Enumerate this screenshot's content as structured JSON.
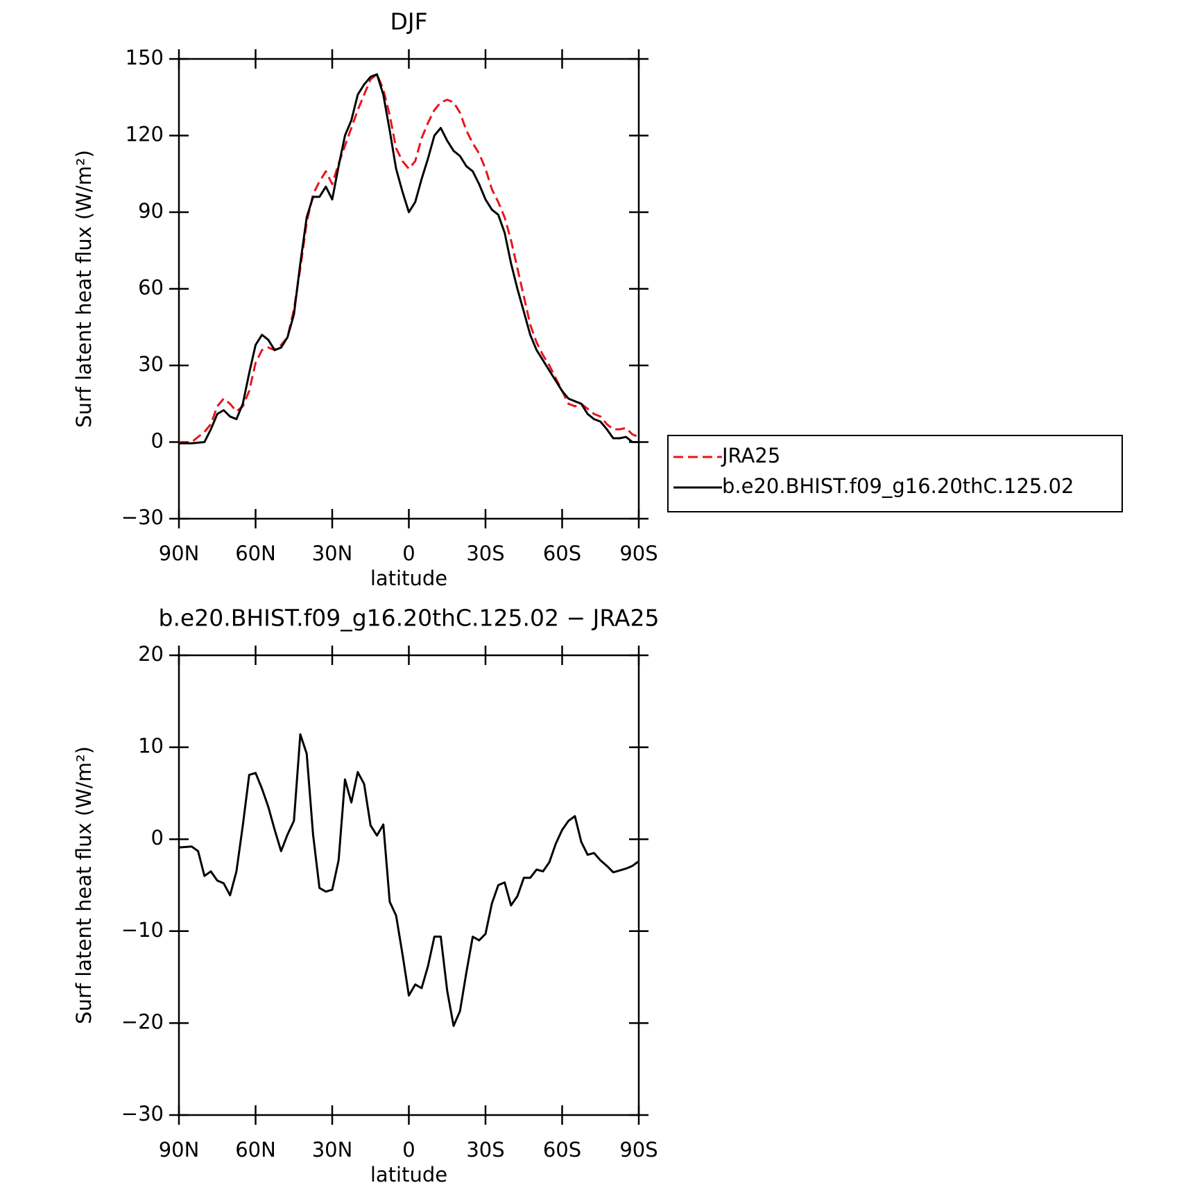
{
  "chart_data": [
    {
      "type": "line",
      "title": "DJF",
      "xlabel": "latitude",
      "ylabel": "Surf latent heat flux (W/m²)",
      "x": [
        90,
        85,
        80,
        77.5,
        75,
        72.5,
        70,
        67.5,
        65,
        62.5,
        60,
        57.5,
        55,
        52.5,
        50,
        47.5,
        45,
        42.5,
        40,
        37.5,
        35,
        32.5,
        30,
        27.5,
        25,
        22.5,
        20,
        17.5,
        15,
        12.5,
        10,
        7.5,
        5,
        2.5,
        0,
        -2.5,
        -5,
        -7.5,
        -10,
        -12.5,
        -15,
        -17.5,
        -20,
        -22.5,
        -25,
        -27.5,
        -30,
        -32.5,
        -35,
        -37.5,
        -40,
        -42.5,
        -45,
        -47.5,
        -50,
        -52.5,
        -55,
        -57.5,
        -60,
        -62.5,
        -65,
        -67.5,
        -70,
        -72.5,
        -75,
        -77.5,
        -80,
        -82.5,
        -85,
        -87.5,
        -90
      ],
      "series": [
        {
          "name": "JRA25",
          "color": "#e8141c",
          "dash": true,
          "values": [
            0,
            0,
            4,
            7,
            14,
            17,
            15,
            12,
            14,
            20,
            31,
            36,
            37,
            36,
            38,
            41,
            52,
            68,
            86,
            97,
            102,
            106,
            101,
            109,
            116,
            123,
            130,
            136,
            142,
            144,
            138,
            128,
            115,
            110,
            107,
            110,
            119,
            125,
            130,
            133,
            134,
            133,
            129,
            122,
            117,
            113,
            107,
            99,
            94,
            88,
            79,
            68,
            57,
            46,
            39,
            34,
            30,
            25,
            20,
            15,
            14,
            15,
            13,
            11,
            10,
            7,
            5,
            5,
            5.5,
            3,
            2
          ]
        },
        {
          "name": "b.e20.BHIST.f09_g16.20thC.125.02",
          "color": "#000000",
          "dash": false,
          "values": [
            -0.5,
            -0.5,
            0,
            5,
            11,
            12.5,
            10,
            9,
            15,
            27,
            38,
            42,
            40,
            36,
            37,
            41,
            50,
            70,
            88,
            96,
            96,
            100,
            95,
            108,
            120,
            126,
            136,
            140,
            143,
            144,
            136,
            122,
            107,
            98,
            90,
            94,
            103,
            111,
            120,
            123,
            118,
            114,
            112,
            108,
            106,
            101,
            95,
            91,
            89,
            82,
            70,
            60,
            51,
            42,
            36,
            32,
            28,
            24,
            20,
            17,
            16,
            15,
            11,
            9,
            8,
            5,
            1.5,
            1.5,
            2,
            0,
            0
          ]
        }
      ],
      "xlim": [
        90,
        -90
      ],
      "xticks": [
        {
          "value": 90,
          "label": "90N"
        },
        {
          "value": 60,
          "label": "60N"
        },
        {
          "value": 30,
          "label": "30N"
        },
        0,
        {
          "value": -30,
          "label": "30S"
        },
        {
          "value": -60,
          "label": "60S"
        },
        {
          "value": -90,
          "label": "90S"
        }
      ],
      "ylim": [
        -30,
        150
      ],
      "yticks": [
        {
          "value": -30,
          "label": "−30"
        },
        0,
        30,
        60,
        90,
        120,
        150
      ],
      "legend": "right"
    },
    {
      "type": "line",
      "title": "b.e20.BHIST.f09_g16.20thC.125.02 − JRA25",
      "xlabel": "latitude",
      "ylabel": "Surf latent heat flux (W/m²)",
      "x": [
        90,
        85,
        82.5,
        80,
        77.5,
        75,
        72.5,
        70,
        67.5,
        65,
        62.5,
        60,
        57.5,
        55,
        52.5,
        50,
        47.5,
        45,
        42.5,
        40,
        37.5,
        35,
        32.5,
        30,
        27.5,
        25,
        22.5,
        20,
        17.5,
        15,
        12.5,
        10,
        7.5,
        5,
        2.5,
        0,
        -2.5,
        -5,
        -7.5,
        -10,
        -12.5,
        -15,
        -17.5,
        -20,
        -22.5,
        -25,
        -27.5,
        -30,
        -32.5,
        -35,
        -37.5,
        -40,
        -42.5,
        -45,
        -47.5,
        -50,
        -52.5,
        -55,
        -57.5,
        -60,
        -62.5,
        -65,
        -67.5,
        -70,
        -72.5,
        -75,
        -77.5,
        -80,
        -82.5,
        -85,
        -87.5,
        -90
      ],
      "values": [
        -0.9,
        -0.8,
        -1.3,
        -4,
        -3.5,
        -4.5,
        -4.8,
        -6.1,
        -3.5,
        1.5,
        7,
        7.2,
        5.5,
        3.5,
        1,
        -1.3,
        0.5,
        2,
        11.4,
        9.3,
        0.5,
        -5.3,
        -5.7,
        -5.5,
        -2.3,
        6.5,
        4,
        7.3,
        6,
        1.5,
        0.4,
        1.6,
        -6.8,
        -8.3,
        -12.5,
        -17,
        -15.8,
        -16.2,
        -13.8,
        -10.6,
        -10.6,
        -16.5,
        -20.3,
        -18.7,
        -14.5,
        -10.6,
        -11,
        -10.3,
        -7,
        -5,
        -4.7,
        -7.2,
        -6.2,
        -4.2,
        -4.2,
        -3.3,
        -3.5,
        -2.5,
        -0.5,
        1,
        2,
        2.5,
        -0.3,
        -1.7,
        -1.5,
        -2.3,
        -2.9,
        -3.6,
        -3.4,
        -3.2,
        -2.9,
        -2.4
      ],
      "color": "#000000",
      "xlim": [
        90,
        -90
      ],
      "xticks": [
        {
          "value": 90,
          "label": "90N"
        },
        {
          "value": 60,
          "label": "60N"
        },
        {
          "value": 30,
          "label": "30N"
        },
        0,
        {
          "value": -30,
          "label": "30S"
        },
        {
          "value": -60,
          "label": "60S"
        },
        {
          "value": -90,
          "label": "90S"
        }
      ],
      "ylim": [
        -30,
        20
      ],
      "yticks": [
        {
          "value": -30,
          "label": "−30"
        },
        {
          "value": -20,
          "label": "−20"
        },
        {
          "value": -10,
          "label": "−10"
        },
        0,
        10,
        20
      ]
    }
  ]
}
